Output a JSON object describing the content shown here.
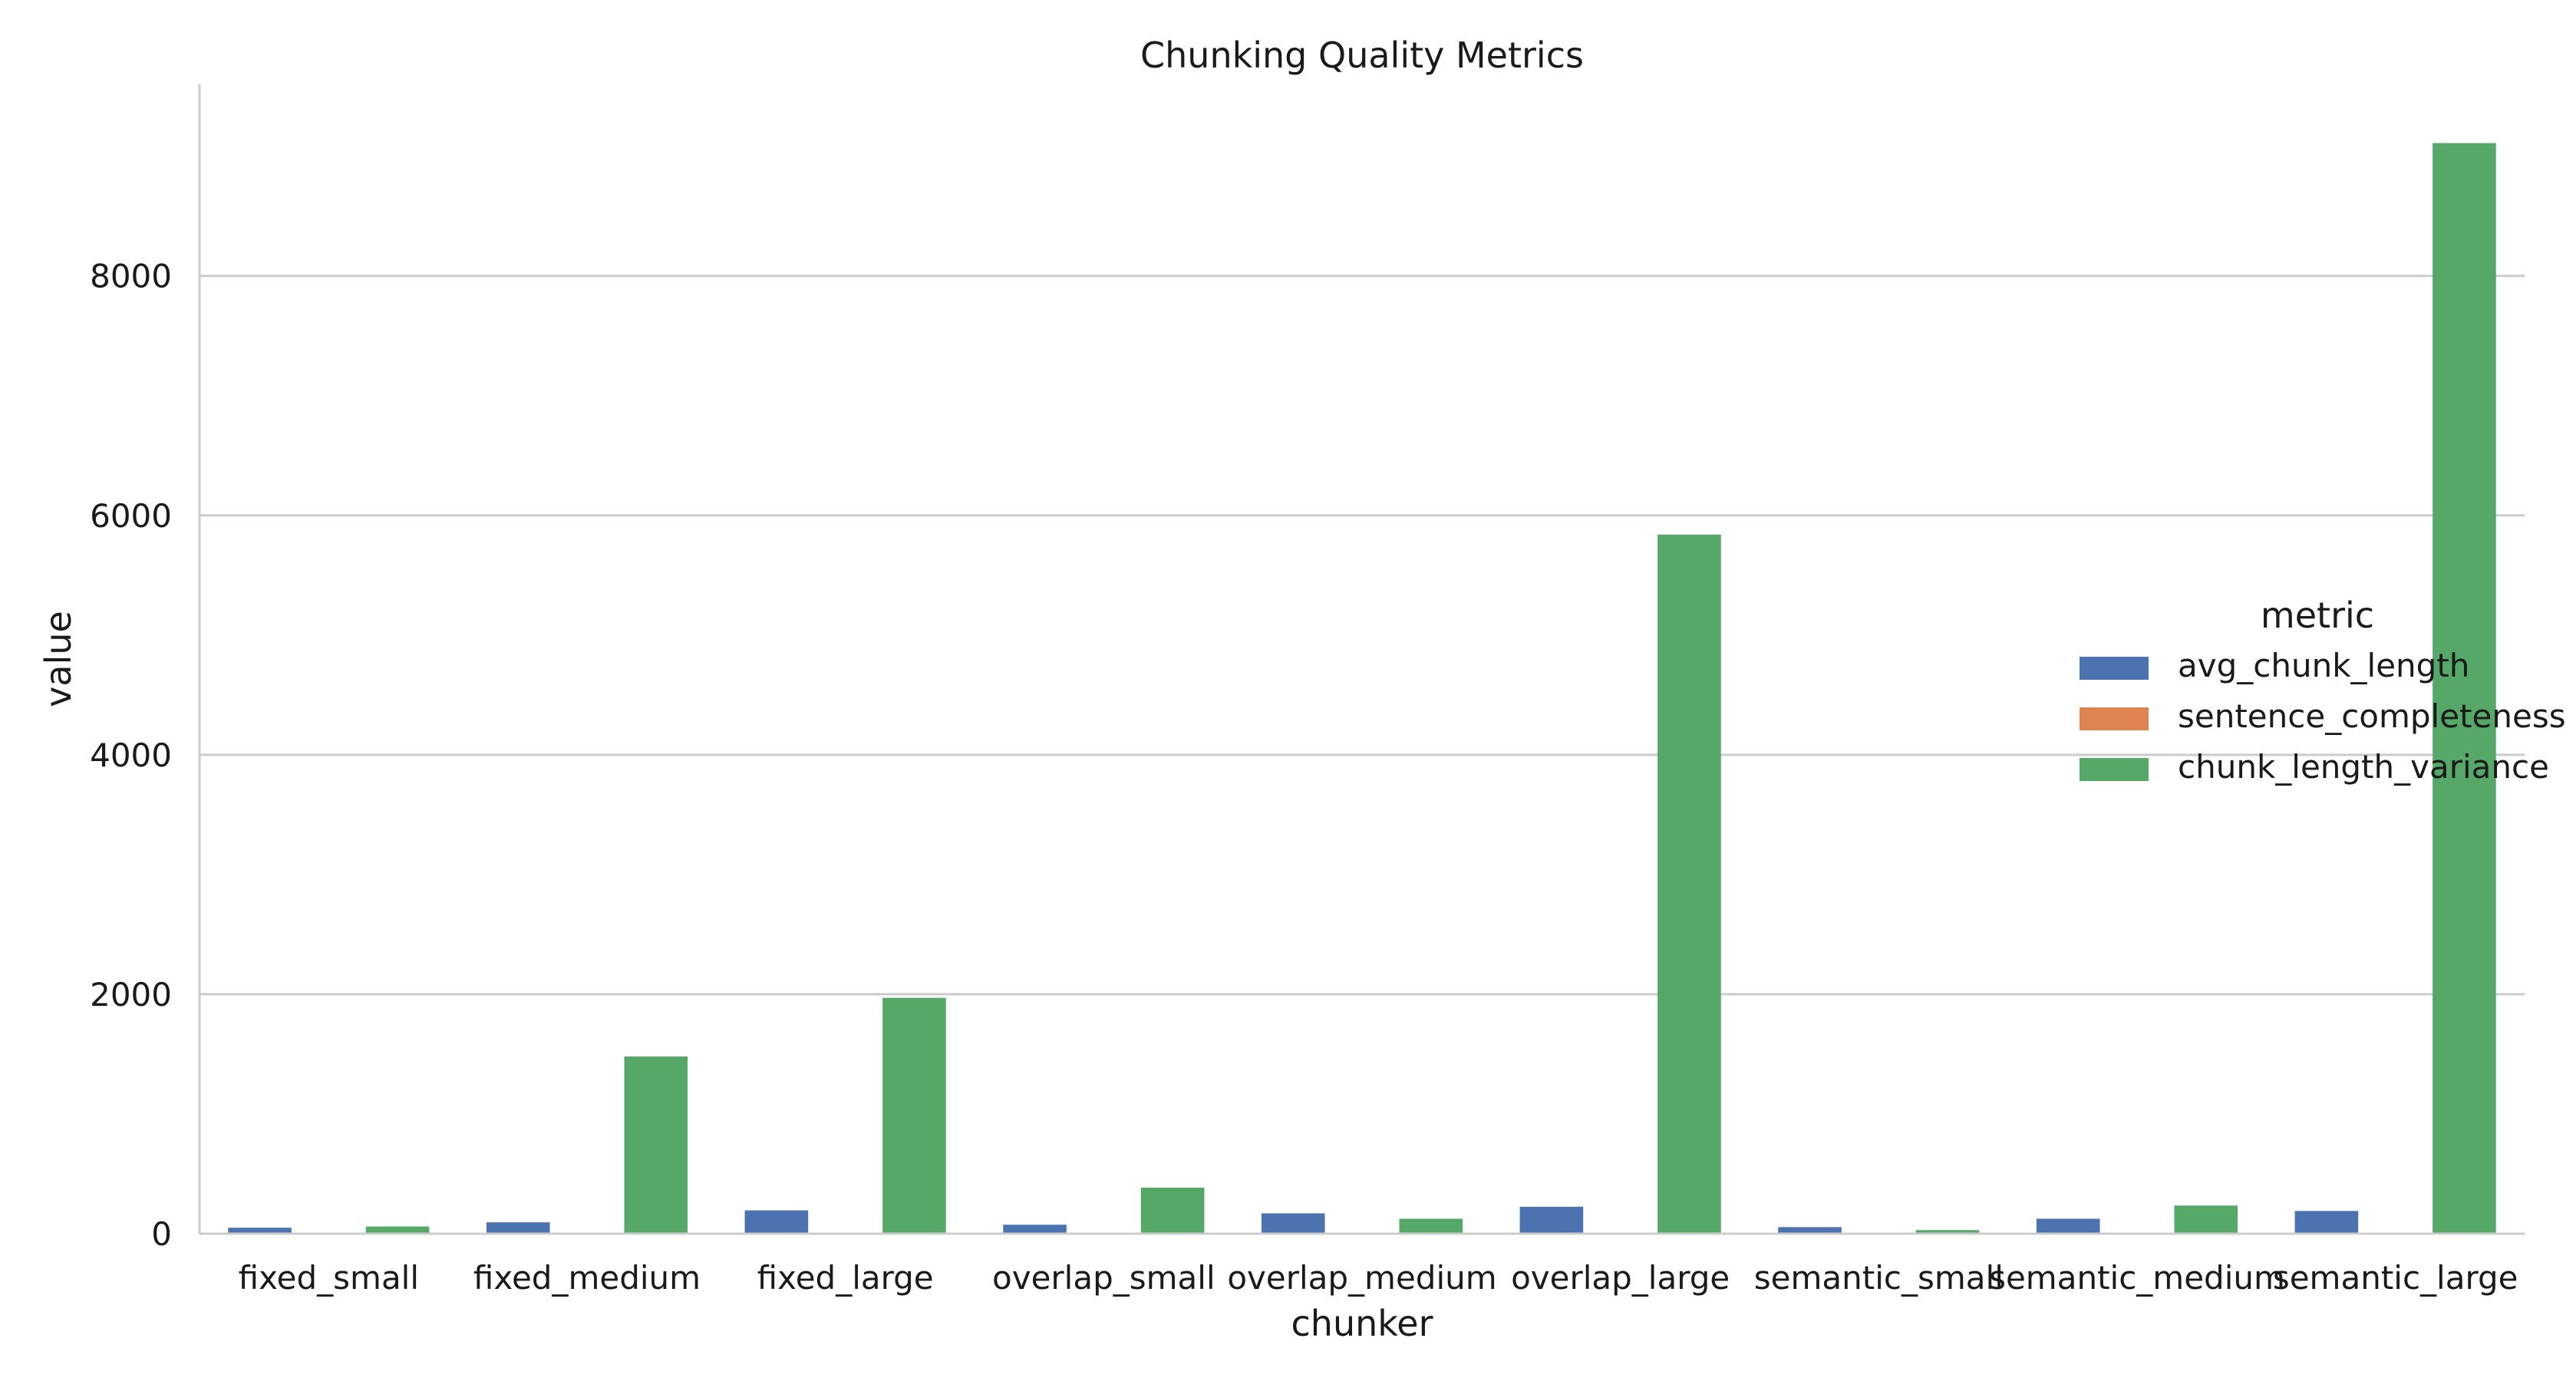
{
  "chart_data": {
    "type": "bar",
    "title": "Chunking Quality Metrics",
    "xlabel": "chunker",
    "ylabel": "value",
    "ylim": [
      0,
      9600
    ],
    "yticks": [
      0,
      2000,
      4000,
      6000,
      8000
    ],
    "grid": "horizontal",
    "legend_title": "metric",
    "legend_position": "right",
    "categories": [
      "fixed_small",
      "fixed_medium",
      "fixed_large",
      "overlap_small",
      "overlap_medium",
      "overlap_large",
      "semantic_small",
      "semantic_medium",
      "semantic_large"
    ],
    "series": [
      {
        "name": "avg_chunk_length",
        "color": "#4c72b0",
        "values": [
          50,
          95,
          195,
          75,
          170,
          225,
          55,
          125,
          190
        ]
      },
      {
        "name": "sentence_completeness",
        "color": "#dd8452",
        "values": [
          1,
          1,
          1,
          1,
          1,
          1,
          1,
          1,
          1
        ]
      },
      {
        "name": "chunk_length_variance",
        "color": "#55a868",
        "values": [
          60,
          1480,
          1970,
          385,
          125,
          5840,
          30,
          235,
          9110
        ]
      }
    ]
  }
}
